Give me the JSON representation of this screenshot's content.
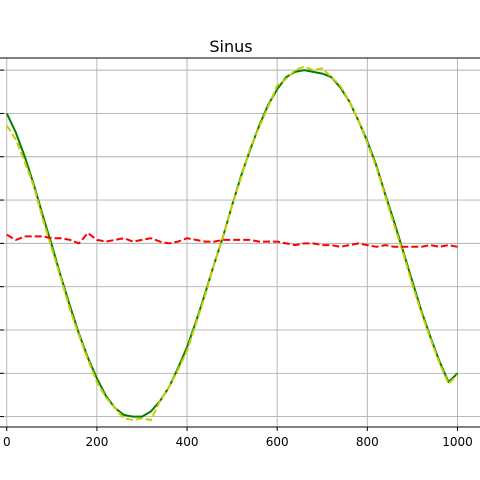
{
  "chart_data": {
    "type": "line",
    "title": "Sinus",
    "xlabel": "",
    "ylabel": "",
    "xlim": [
      -15,
      1050
    ],
    "ylim": [
      -1.06,
      1.07
    ],
    "x_ticks": [
      0,
      200,
      400,
      600,
      800,
      1000
    ],
    "x_tick_labels": [
      "0",
      "200",
      "400",
      "600",
      "800",
      "1000"
    ],
    "y_gridlines": [
      -1.0,
      -0.75,
      -0.5,
      -0.25,
      0.0,
      0.25,
      0.5,
      0.75,
      1.0
    ],
    "grid": true,
    "x": [
      0,
      20,
      40,
      60,
      80,
      100,
      120,
      140,
      160,
      180,
      200,
      220,
      240,
      260,
      280,
      300,
      320,
      340,
      360,
      380,
      400,
      420,
      440,
      460,
      480,
      500,
      520,
      540,
      560,
      580,
      600,
      620,
      640,
      660,
      680,
      700,
      720,
      740,
      760,
      780,
      800,
      820,
      840,
      860,
      880,
      900,
      920,
      940,
      960,
      980,
      1000
    ],
    "series": [
      {
        "color": "#008000",
        "style": "solid",
        "values": [
          0.75,
          0.64,
          0.5,
          0.34,
          0.16,
          -0.01,
          -0.19,
          -0.36,
          -0.52,
          -0.66,
          -0.78,
          -0.88,
          -0.95,
          -0.99,
          -1.0,
          -1.0,
          -0.97,
          -0.91,
          -0.83,
          -0.72,
          -0.6,
          -0.45,
          -0.29,
          -0.12,
          0.04,
          0.22,
          0.39,
          0.54,
          0.68,
          0.8,
          0.89,
          0.96,
          0.99,
          1.0,
          0.99,
          0.98,
          0.96,
          0.9,
          0.82,
          0.71,
          0.59,
          0.45,
          0.28,
          0.12,
          -0.05,
          -0.22,
          -0.39,
          -0.54,
          -0.68,
          -0.8,
          -0.75
        ]
      },
      {
        "color": "#cccc00",
        "style": "dashed",
        "values": [
          0.68,
          0.6,
          0.47,
          0.33,
          0.14,
          -0.03,
          -0.2,
          -0.38,
          -0.53,
          -0.67,
          -0.8,
          -0.89,
          -0.95,
          -1.01,
          -1.02,
          -1.01,
          -1.02,
          -0.91,
          -0.83,
          -0.73,
          -0.62,
          -0.46,
          -0.3,
          -0.12,
          0.04,
          0.22,
          0.38,
          0.55,
          0.67,
          0.79,
          0.91,
          0.95,
          1.0,
          1.02,
          1.0,
          1.01,
          0.96,
          0.91,
          0.82,
          0.71,
          0.58,
          0.44,
          0.27,
          0.1,
          -0.06,
          -0.24,
          -0.4,
          -0.55,
          -0.69,
          -0.81,
          -0.76
        ]
      },
      {
        "color": "#ff0000",
        "style": "dashed",
        "values": [
          0.05,
          0.02,
          0.04,
          0.04,
          0.04,
          0.03,
          0.03,
          0.02,
          0.0,
          0.06,
          0.02,
          0.01,
          0.02,
          0.03,
          0.01,
          0.02,
          0.03,
          0.01,
          0.0,
          0.01,
          0.03,
          0.02,
          0.01,
          0.01,
          0.02,
          0.02,
          0.02,
          0.02,
          0.01,
          0.01,
          0.01,
          0.0,
          -0.01,
          0.0,
          0.0,
          -0.01,
          -0.01,
          -0.02,
          -0.01,
          0.0,
          -0.01,
          -0.02,
          -0.01,
          -0.02,
          -0.02,
          -0.02,
          -0.02,
          -0.01,
          -0.02,
          -0.01,
          -0.02
        ]
      }
    ]
  }
}
